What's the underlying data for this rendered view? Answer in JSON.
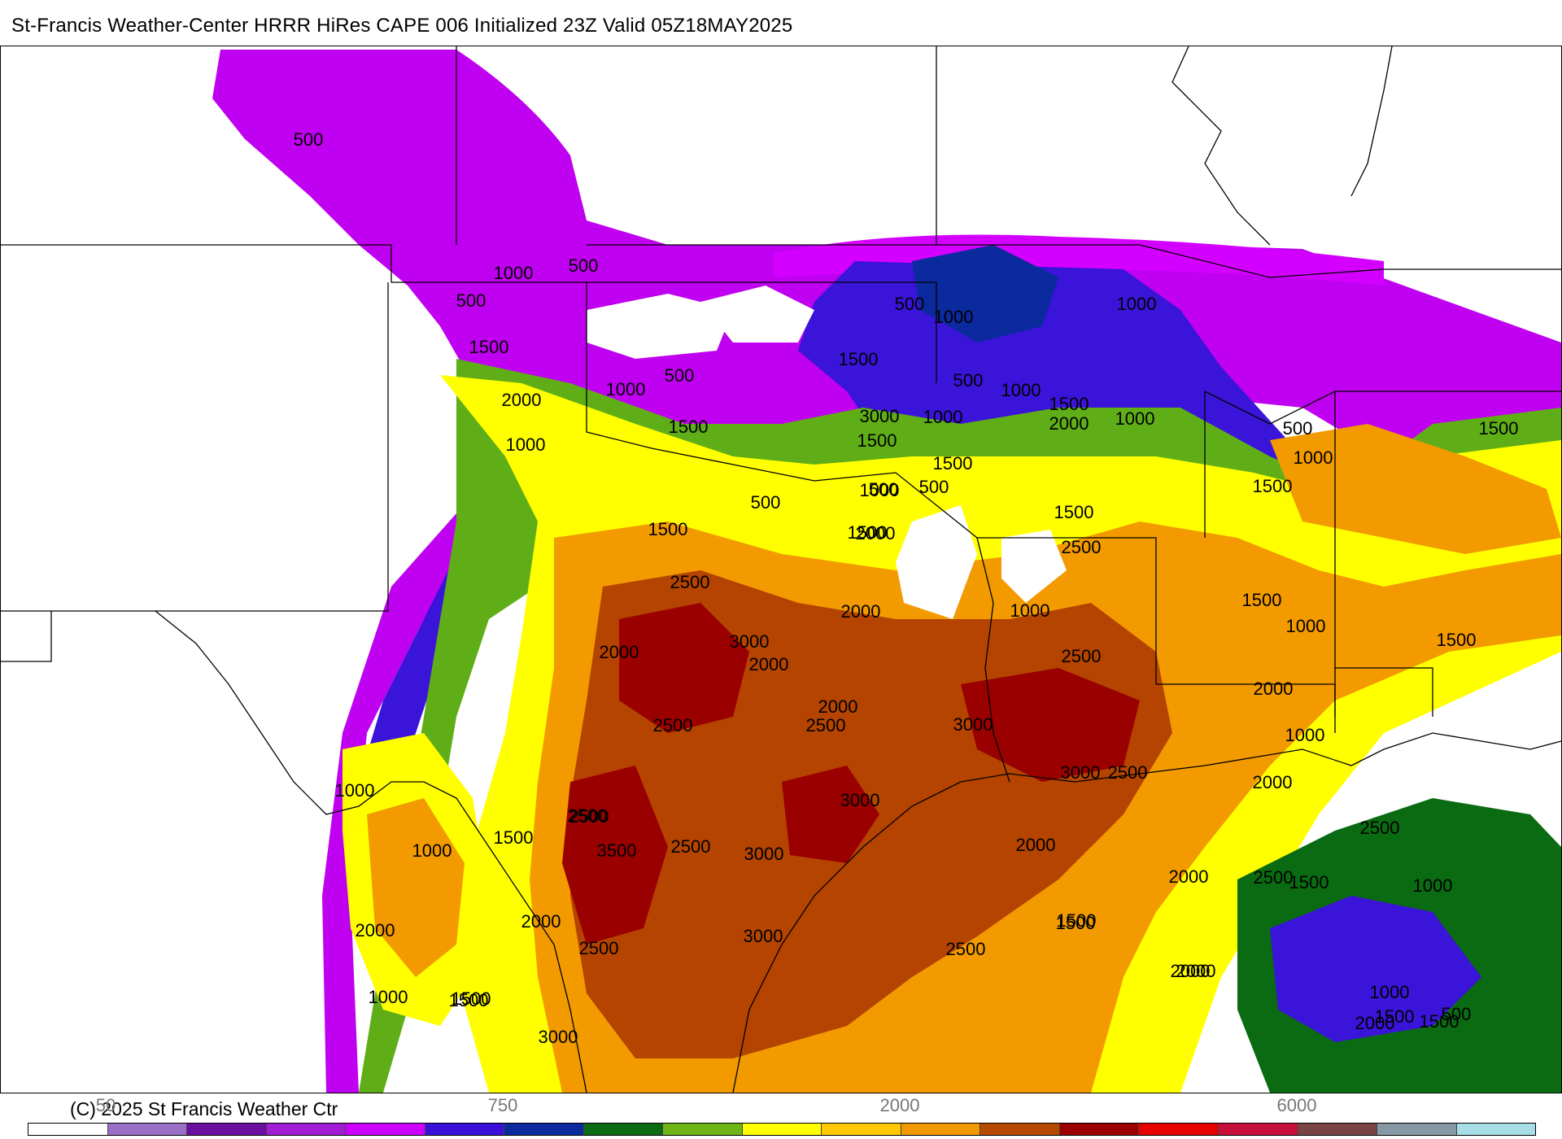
{
  "title": "St-Francis Weather-Center HRRR HiRes CAPE  006 Initialized  23Z Valid 05Z18MAY2025",
  "copyright": "(C) 2025 St Francis Weather Ctr",
  "colorbar": {
    "tick_labels": [
      "50",
      "750",
      "2000",
      "6000"
    ],
    "colors": [
      "#ffffff",
      "#9b6fc6",
      "#6a0fa0",
      "#a11cd4",
      "#cc00ff",
      "#3a10d8",
      "#0a2a9e",
      "#0a6b12",
      "#6fb515",
      "#ffff00",
      "#ffc800",
      "#f09a00",
      "#b84a00",
      "#9c0000",
      "#e60000",
      "#c8103c",
      "#7a4444",
      "#8899a6",
      "#a6dde6"
    ]
  },
  "contour_levels": [
    "500",
    "1000",
    "1500",
    "2000",
    "2500",
    "3000",
    "3500"
  ],
  "contour_labels": [
    "500",
    "1000",
    "500",
    "500",
    "1500",
    "2000",
    "1000",
    "1000",
    "500",
    "1500",
    "1500",
    "3000",
    "1500",
    "500",
    "1000",
    "1000",
    "500",
    "1000",
    "1000",
    "1500",
    "2000",
    "1000",
    "500",
    "1000",
    "1500",
    "500",
    "1500",
    "1500",
    "1500",
    "500",
    "1500",
    "2500",
    "500",
    "1000",
    "1500",
    "2000",
    "2000",
    "2500",
    "1500",
    "1000",
    "2000",
    "1000",
    "3000",
    "2000",
    "2500",
    "2000",
    "2500",
    "2000",
    "1500",
    "1000",
    "2000",
    "2500",
    "2500",
    "3000",
    "2500",
    "2500",
    "3000",
    "3000",
    "2500",
    "3000",
    "1000",
    "1000",
    "2500",
    "1500",
    "2500",
    "3500",
    "2000",
    "2000",
    "1500",
    "1500",
    "1000",
    "1500",
    "500",
    "2500",
    "2000",
    "2000",
    "2000",
    "3000",
    "1500",
    "2500",
    "1500",
    "2000",
    "1000",
    "1500",
    "2000",
    "1000",
    "1500",
    "3000"
  ]
}
